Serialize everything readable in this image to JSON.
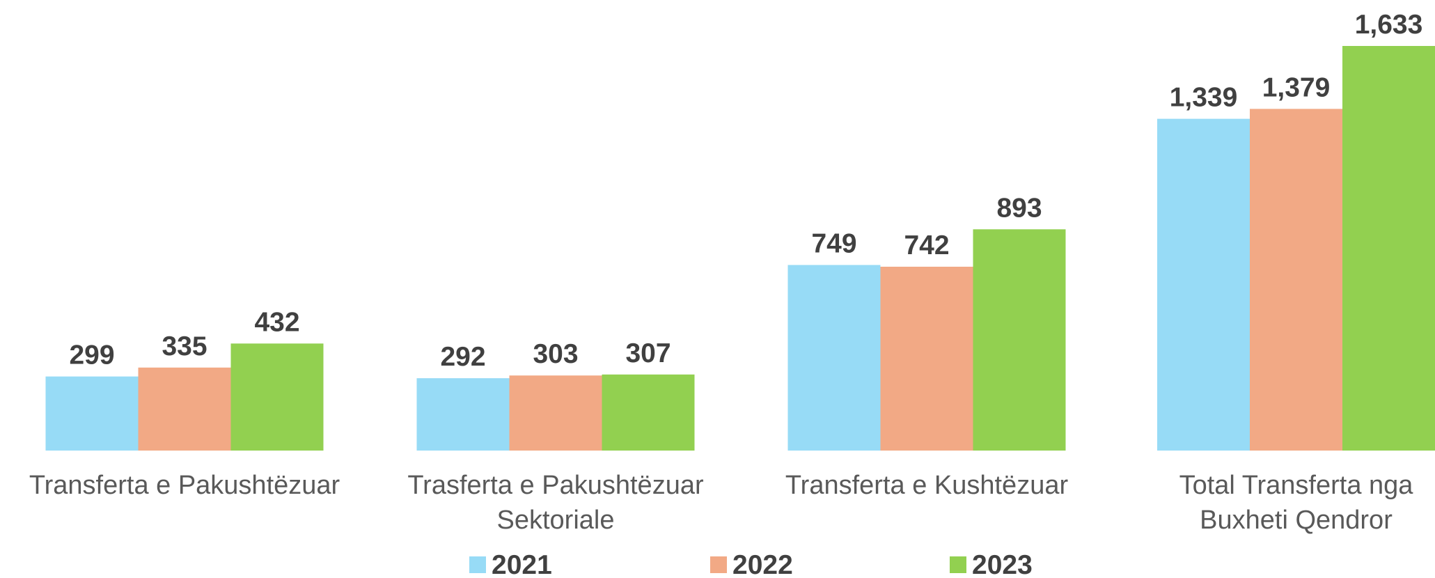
{
  "chart_data": {
    "type": "bar",
    "categories": [
      "Transferta e Pakushtëzuar",
      "Trasferta e Pakushtëzuar Sektoriale",
      "Transferta e Kushtëzuar",
      "Total Transferta nga Buxheti Qendror"
    ],
    "series": [
      {
        "name": "2021",
        "color": "#97dbf6",
        "values": [
          299,
          292,
          749,
          1339
        ],
        "value_labels": [
          "299",
          "292",
          "749",
          "1,339"
        ]
      },
      {
        "name": "2022",
        "color": "#f2a985",
        "values": [
          335,
          303,
          742,
          1379
        ],
        "value_labels": [
          "335",
          "303",
          "742",
          "1,379"
        ]
      },
      {
        "name": "2023",
        "color": "#92d050",
        "values": [
          432,
          307,
          893,
          1633
        ],
        "value_labels": [
          "432",
          "307",
          "893",
          "1,633"
        ]
      }
    ]
  }
}
